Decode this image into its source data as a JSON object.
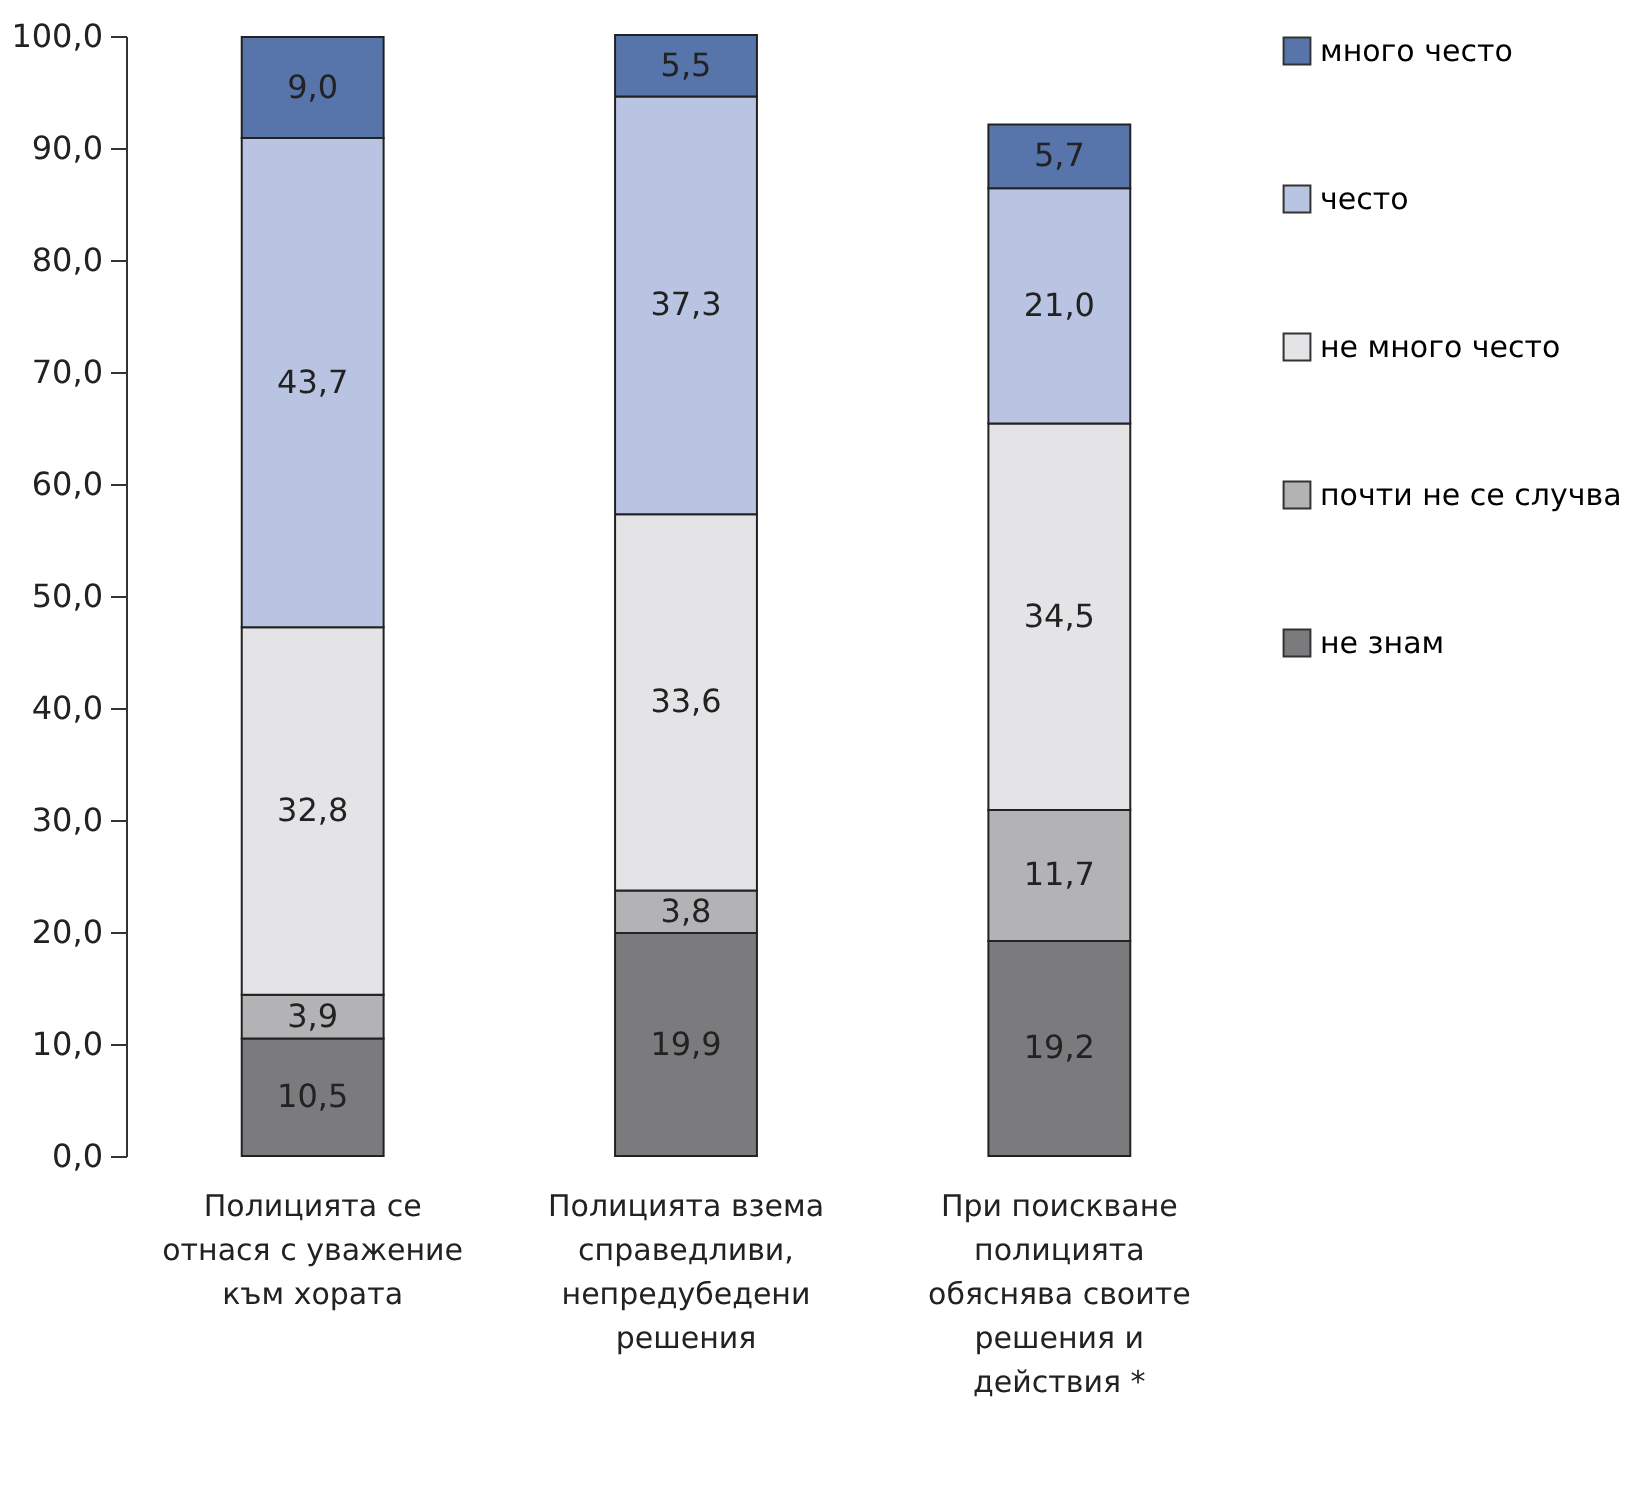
{
  "chart_data": {
    "type": "bar",
    "stacked": true,
    "categories": [
      "Полицията се отнася с уважение към хората",
      "Полицията взема справедливи, непредубедени решения",
      "При поискване полицията обяснява своите решения и действия *"
    ],
    "series": [
      {
        "name": "не знам",
        "color": "#7b7b7d",
        "values": [
          10.5,
          19.9,
          19.2
        ],
        "value_labels": [
          "10,5",
          "19,9",
          "19,2"
        ]
      },
      {
        "name": "почти не се случва",
        "color": "#b3b3b5",
        "values": [
          3.9,
          3.8,
          11.7
        ],
        "value_labels": [
          "3,9",
          "3,8",
          "11,7"
        ]
      },
      {
        "name": "не много често",
        "color": "#e4e4e6",
        "values": [
          32.8,
          33.6,
          34.5
        ],
        "value_labels": [
          "32,8",
          "33,6",
          "34,5"
        ]
      },
      {
        "name": "често",
        "color": "#b8c4e2",
        "values": [
          43.7,
          37.3,
          21.0
        ],
        "value_labels": [
          "43,7",
          "37,3",
          "21,0"
        ]
      },
      {
        "name": "много често",
        "color": "#5774ab",
        "values": [
          9.0,
          5.5,
          5.7
        ],
        "value_labels": [
          "9,0",
          "5,5",
          "5,7"
        ]
      }
    ],
    "ylim": [
      0,
      100
    ],
    "yticks": [
      {
        "value": 0,
        "label": "0,0"
      },
      {
        "value": 10,
        "label": "10,0"
      },
      {
        "value": 20,
        "label": "20,0"
      },
      {
        "value": 30,
        "label": "30,0"
      },
      {
        "value": 40,
        "label": "40,0"
      },
      {
        "value": 50,
        "label": "50,0"
      },
      {
        "value": 60,
        "label": "60,0"
      },
      {
        "value": 70,
        "label": "70,0"
      },
      {
        "value": 80,
        "label": "80,0"
      },
      {
        "value": 90,
        "label": "90,0"
      },
      {
        "value": 100,
        "label": "100,0"
      }
    ],
    "grid": false,
    "legend": "right"
  }
}
